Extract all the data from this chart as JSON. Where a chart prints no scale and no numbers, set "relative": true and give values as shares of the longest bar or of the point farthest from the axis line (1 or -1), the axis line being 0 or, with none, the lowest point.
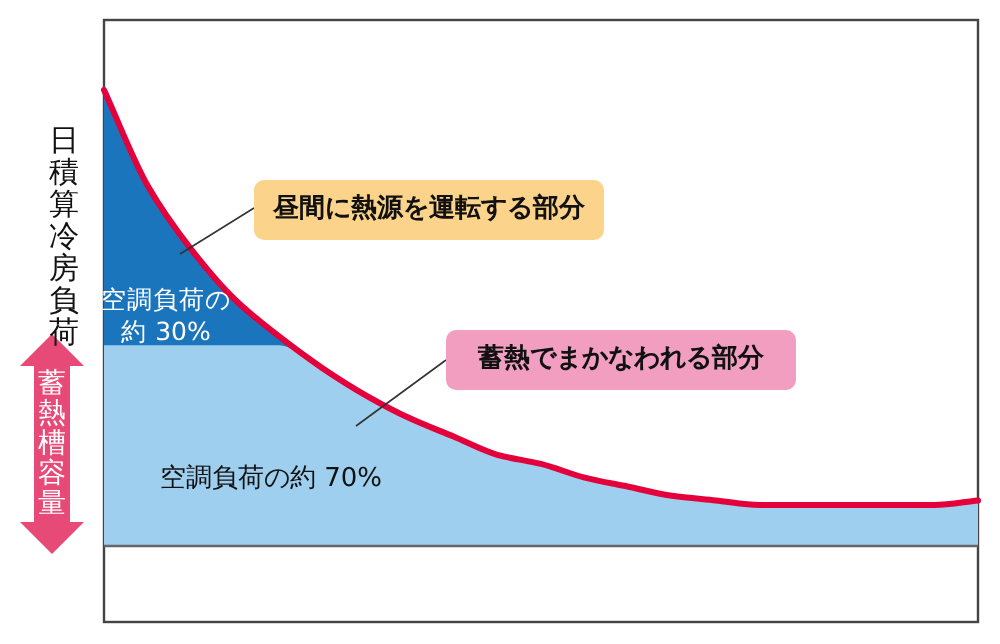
{
  "chart_data": {
    "type": "area",
    "relative": true,
    "ylabel": "日積算冷房負荷",
    "categories": [
      null,
      null,
      null,
      null,
      null,
      null,
      null,
      null,
      null,
      null,
      null,
      null,
      null,
      null,
      null,
      null,
      null,
      null,
      null,
      null,
      null
    ],
    "series": [
      {
        "type": "area",
        "color": "#1b75bc",
        "values": [
          1,
          0.79,
          0.65,
          0.54,
          0.46,
          0.39,
          0.33,
          0.28,
          0.24,
          0.2,
          0.18,
          0.15,
          0.13,
          0.11,
          0.1,
          0.09,
          0.09,
          0.09,
          0.09,
          0.09,
          0.1
        ]
      },
      {
        "type": "area",
        "color": "#9fcfef",
        "values": [
          0.44,
          0.44,
          0.44,
          0.44,
          0.44,
          0.39,
          0.33,
          0.28,
          0.24,
          0.2,
          0.18,
          0.15,
          0.13,
          0.11,
          0.1,
          0.09,
          0.09,
          0.09,
          0.09,
          0.09,
          0.1
        ]
      },
      {
        "type": "line",
        "color": "#e4003b",
        "values": [
          1,
          0.79,
          0.65,
          0.54,
          0.46,
          0.39,
          0.33,
          0.28,
          0.24,
          0.2,
          0.18,
          0.15,
          0.13,
          0.11,
          0.1,
          0.09,
          0.09,
          0.09,
          0.09,
          0.09,
          0.1
        ]
      }
    ],
    "annotations": [
      "昼間に熱源を運転する部分",
      "蓄熱でまかなわれる部分",
      "空調負荷の約 30%",
      "空調負荷の約 70%",
      "蓄熱槽容量"
    ]
  }
}
